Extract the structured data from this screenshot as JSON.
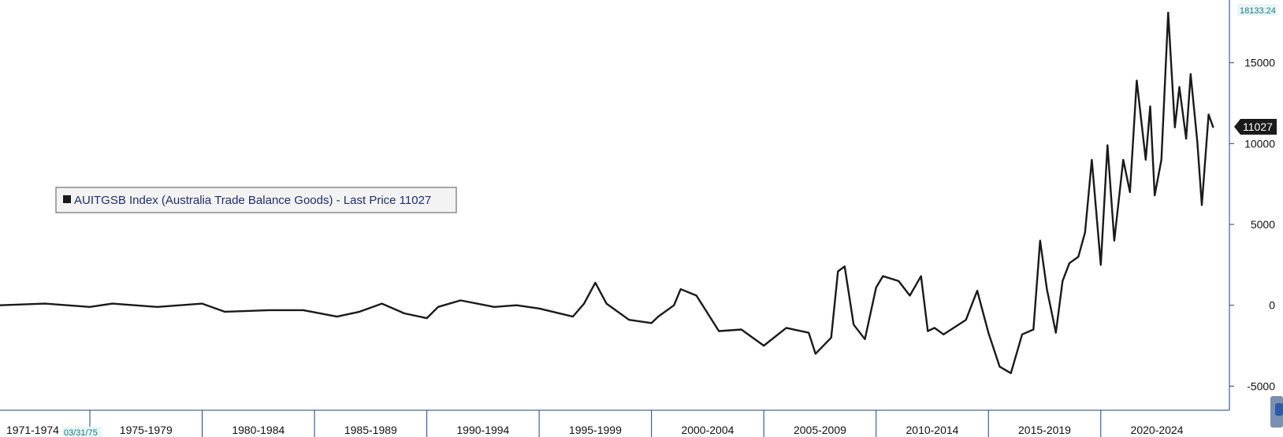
{
  "chart_data": {
    "type": "line",
    "title": "",
    "xlabel": "",
    "ylabel": "",
    "ylim": [
      -6200,
      18200
    ],
    "yticks": [
      15000,
      10000,
      5000,
      0,
      -5000
    ],
    "ytick_labels": [
      "15000",
      "10000",
      "5000",
      "0",
      "-5000"
    ],
    "x_range": [
      "1971-01",
      "2025-03"
    ],
    "x_periods": [
      "1971-1974",
      "1975-1979",
      "1980-1984",
      "1985-1989",
      "1990-1994",
      "1995-1999",
      "2000-2004",
      "2005-2009",
      "2010-2014",
      "2015-2019",
      "2020-2024"
    ],
    "grid": false,
    "legend": {
      "placement": "upper-left",
      "text": "AUITGSB Index (Australia Trade Balance Goods) - Last Price 11027"
    },
    "max_label": "18133.24",
    "last_value_label": "11027",
    "cursor_date_label": "03/31/75",
    "series": [
      {
        "name": "AUITGSB Index (Australia Trade Balance Goods) - Last Price",
        "color": "#1a1a1a",
        "x": [
          1971.0,
          1973.0,
          1975.0,
          1976.0,
          1978.0,
          1980.0,
          1981.0,
          1983.0,
          1984.5,
          1986.0,
          1987.0,
          1988.0,
          1989.0,
          1990.0,
          1990.5,
          1991.5,
          1993.0,
          1994.0,
          1995.0,
          1996.5,
          1997.0,
          1997.5,
          1998.0,
          1999.0,
          2000.0,
          2000.3,
          2001.0,
          2001.3,
          2002.0,
          2003.0,
          2004.0,
          2005.0,
          2006.0,
          2007.0,
          2007.3,
          2008.0,
          2008.3,
          2008.6,
          2009.0,
          2009.5,
          2010.0,
          2010.3,
          2011.0,
          2011.5,
          2012.0,
          2012.3,
          2012.6,
          2013.0,
          2014.0,
          2014.5,
          2015.0,
          2015.5,
          2016.0,
          2016.5,
          2017.0,
          2017.3,
          2017.6,
          2018.0,
          2018.3,
          2018.6,
          2019.0,
          2019.3,
          2019.6,
          2020.0,
          2020.3,
          2020.6,
          2021.0,
          2021.3,
          2021.6,
          2022.0,
          2022.2,
          2022.4,
          2022.7,
          2023.0,
          2023.3,
          2023.5,
          2023.8,
          2024.0,
          2024.3,
          2024.5,
          2024.8,
          2025.0
        ],
        "y": [
          0,
          100,
          -100,
          100,
          -100,
          100,
          -400,
          -300,
          -300,
          -700,
          -400,
          100,
          -500,
          -800,
          -100,
          300,
          -100,
          0,
          -200,
          -700,
          100,
          1400,
          100,
          -900,
          -1100,
          -700,
          0,
          1000,
          600,
          -1600,
          -1500,
          -2500,
          -1400,
          -1700,
          -3000,
          -2000,
          2100,
          2400,
          -1200,
          -2100,
          1100,
          1800,
          1500,
          600,
          1800,
          -1600,
          -1400,
          -1800,
          -900,
          900,
          -1700,
          -3800,
          -4200,
          -1800,
          -1500,
          4000,
          1000,
          -1700,
          1500,
          2600,
          3000,
          4500,
          9000,
          2500,
          9900,
          4000,
          9000,
          7000,
          13900,
          9000,
          12300,
          6800,
          9000,
          18100,
          11000,
          13500,
          10300,
          14300,
          10100,
          6200,
          11800,
          11027
        ]
      }
    ]
  }
}
